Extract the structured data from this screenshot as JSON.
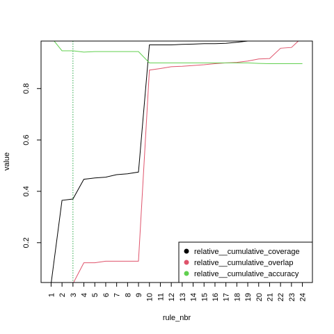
{
  "chart_data": {
    "type": "line",
    "title": "",
    "xlabel": "rule_nbr",
    "ylabel": "value",
    "categories": [
      "1",
      "2",
      "3",
      "4",
      "5",
      "6",
      "7",
      "8",
      "9",
      "10",
      "11",
      "12",
      "13",
      "14",
      "15",
      "16",
      "17",
      "18",
      "19",
      "20",
      "21",
      "22",
      "23",
      "24"
    ],
    "yticks": [
      0.2,
      0.4,
      0.6,
      0.8
    ],
    "ylim": [
      0.045,
      0.985
    ],
    "vline_at": 3,
    "vline_color": "#28a745",
    "legend_position": "bottom-right",
    "series": [
      {
        "name": "relative__cumulative_coverage",
        "color": "#000000",
        "values": [
          0.04,
          0.365,
          0.37,
          0.447,
          0.452,
          0.455,
          0.465,
          0.468,
          0.475,
          0.97,
          0.97,
          0.97,
          0.972,
          0.973,
          0.975,
          0.975,
          0.976,
          0.98,
          0.985,
          0.99,
          0.995,
          1.0,
          1.0,
          1.0
        ]
      },
      {
        "name": "relative__cumulative_overlap",
        "color": "#df536b",
        "values": [
          0.0,
          0.0,
          0.04,
          0.122,
          0.122,
          0.128,
          0.128,
          0.128,
          0.128,
          0.872,
          0.878,
          0.885,
          0.887,
          0.89,
          0.893,
          0.897,
          0.9,
          0.902,
          0.907,
          0.915,
          0.917,
          0.957,
          0.96,
          1.0
        ]
      },
      {
        "name": "relative__cumulative_accuracy",
        "color": "#61d04f",
        "values": [
          1.0,
          0.947,
          0.947,
          0.942,
          0.944,
          0.944,
          0.944,
          0.944,
          0.944,
          0.9,
          0.9,
          0.9,
          0.9,
          0.9,
          0.9,
          0.9,
          0.9,
          0.9,
          0.9,
          0.898,
          0.897,
          0.897,
          0.897,
          0.897
        ]
      }
    ]
  }
}
